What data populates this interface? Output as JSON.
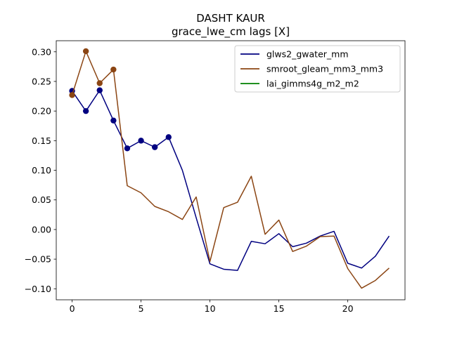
{
  "chart_data": {
    "type": "line",
    "title": "DASHT KAUR",
    "subtitle": "grace_lwe_cm lags [X]",
    "xlabel": "",
    "ylabel": "",
    "xlim": [
      -1.15,
      24.15
    ],
    "ylim": [
      -0.1186,
      0.3187
    ],
    "xticks": [
      0,
      5,
      10,
      15,
      20
    ],
    "xtick_labels": [
      "0",
      "5",
      "10",
      "15",
      "20"
    ],
    "yticks": [
      -0.1,
      -0.05,
      0.0,
      0.05,
      0.1,
      0.15,
      0.2,
      0.25,
      0.3
    ],
    "ytick_labels": [
      "−0.10",
      "−0.05",
      "0.00",
      "0.05",
      "0.10",
      "0.15",
      "0.20",
      "0.25",
      "0.30"
    ],
    "grid": false,
    "legend_position": "top-right",
    "series": [
      {
        "name": "glws2_gwater_mm",
        "color": "#000080",
        "x": [
          0,
          1,
          2,
          3,
          4,
          5,
          6,
          7,
          8,
          9,
          10,
          11,
          12,
          13,
          14,
          15,
          16,
          17,
          18,
          19,
          20,
          21,
          22,
          23
        ],
        "y": [
          0.234,
          0.2,
          0.235,
          0.184,
          0.137,
          0.15,
          0.139,
          0.156,
          0.1,
          0.02,
          -0.058,
          -0.067,
          -0.069,
          -0.02,
          -0.024,
          -0.007,
          -0.029,
          -0.023,
          -0.011,
          -0.003,
          -0.057,
          -0.065,
          -0.045,
          -0.011
        ],
        "markers": [
          0,
          1,
          2,
          3,
          4,
          5,
          6,
          7
        ]
      },
      {
        "name": "smroot_gleam_mm3_mm3",
        "color": "#8B4513",
        "x": [
          0,
          1,
          2,
          3,
          4,
          5,
          6,
          7,
          8,
          9,
          10,
          11,
          12,
          13,
          14,
          15,
          16,
          17,
          18,
          19,
          20,
          21,
          22,
          23
        ],
        "y": [
          0.227,
          0.301,
          0.247,
          0.27,
          0.074,
          0.062,
          0.039,
          0.03,
          0.017,
          0.055,
          -0.054,
          0.037,
          0.046,
          0.09,
          -0.008,
          0.016,
          -0.037,
          -0.028,
          -0.012,
          -0.011,
          -0.066,
          -0.099,
          -0.086,
          -0.065
        ],
        "markers": [
          0,
          1,
          2,
          3
        ]
      },
      {
        "name": "lai_gimms4g_m2_m2",
        "color": "#008000",
        "x": [],
        "y": [],
        "markers": []
      }
    ]
  }
}
